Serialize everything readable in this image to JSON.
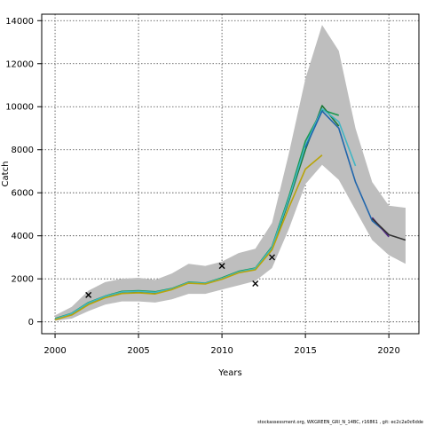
{
  "chart_data": {
    "type": "line",
    "xlabel": "Years",
    "ylabel": "Catch",
    "xlim": [
      1999.2,
      2021.8
    ],
    "ylim": [
      -550,
      14300
    ],
    "x_ticks": [
      2000,
      2005,
      2010,
      2015,
      2020
    ],
    "y_ticks": [
      0,
      2000,
      4000,
      6000,
      8000,
      10000,
      12000,
      14000
    ],
    "grid": true,
    "grid_style": "dotted",
    "uncertainty_band": {
      "color": "#bebebe",
      "x": [
        2000,
        2001,
        2002,
        2003,
        2004,
        2005,
        2006,
        2007,
        2008,
        2009,
        2010,
        2011,
        2012,
        2013,
        2014,
        2015,
        2016,
        2017,
        2018,
        2019,
        2020,
        2021
      ],
      "upper": [
        300,
        700,
        1450,
        1850,
        2000,
        2050,
        1950,
        2250,
        2700,
        2600,
        2800,
        3200,
        3400,
        4600,
        7800,
        11300,
        13800,
        12600,
        9000,
        6500,
        5400,
        5300
      ],
      "lower": [
        50,
        150,
        500,
        800,
        950,
        950,
        900,
        1050,
        1300,
        1300,
        1500,
        1700,
        1900,
        2500,
        4300,
        6400,
        7300,
        6600,
        5200,
        3800,
        3100,
        2700
      ]
    },
    "series": [
      {
        "color": "#1a9850",
        "x": [
          2000,
          2001,
          2002,
          2003,
          2004,
          2005,
          2006,
          2007,
          2008,
          2009,
          2010,
          2011,
          2012,
          2013,
          2014,
          2015,
          2016,
          2017
        ],
        "values": [
          150,
          400,
          900,
          1200,
          1420,
          1450,
          1400,
          1550,
          1850,
          1800,
          2050,
          2350,
          2500,
          3500,
          5800,
          8400,
          9850,
          9600
        ]
      },
      {
        "color": "#1b7837",
        "x": [
          2000,
          2001,
          2002,
          2003,
          2004,
          2005,
          2006,
          2007,
          2008,
          2009,
          2010,
          2011,
          2012,
          2013,
          2014,
          2015,
          2016,
          2017
        ],
        "values": [
          120,
          380,
          870,
          1180,
          1380,
          1400,
          1350,
          1520,
          1820,
          1780,
          2000,
          2300,
          2450,
          3400,
          5600,
          8000,
          10050,
          9100
        ]
      },
      {
        "color": "#41b6c4",
        "x": [
          2000,
          2001,
          2002,
          2003,
          2004,
          2005,
          2006,
          2007,
          2008,
          2009,
          2010,
          2011,
          2012,
          2013,
          2014,
          2015,
          2016,
          2017,
          2018
        ],
        "values": [
          130,
          390,
          880,
          1190,
          1390,
          1420,
          1370,
          1530,
          1830,
          1790,
          2020,
          2320,
          2480,
          3450,
          5700,
          8200,
          9900,
          9300,
          7250
        ]
      },
      {
        "color": "#2166ac",
        "x": [
          2015,
          2016,
          2017,
          2018,
          2019,
          2020
        ],
        "values": [
          8100,
          9800,
          9000,
          6500,
          4700,
          4050
        ]
      },
      {
        "color": "#542788",
        "x": [
          2019,
          2020
        ],
        "values": [
          4850,
          3950
        ]
      },
      {
        "color": "#333333",
        "x": [
          2019,
          2020,
          2021
        ],
        "values": [
          4800,
          4050,
          3800
        ]
      },
      {
        "color": "#b8a40a",
        "x": [
          2000,
          2001,
          2002,
          2003,
          2004,
          2005,
          2006,
          2007,
          2008,
          2009,
          2010,
          2011,
          2012,
          2013,
          2014,
          2015,
          2016
        ],
        "values": [
          100,
          320,
          800,
          1120,
          1320,
          1350,
          1300,
          1500,
          1800,
          1760,
          1980,
          2280,
          2420,
          3350,
          5300,
          7100,
          7750
        ]
      }
    ],
    "observations": {
      "marker": "x",
      "x": [
        2002,
        2010,
        2012,
        2013
      ],
      "values": [
        1250,
        2600,
        1780,
        3000
      ]
    }
  },
  "footer": "stockassessment.org,  WKGREEN_GRI_N_14BC,  r16861 ,  git:  ec2c2a0c6dde"
}
